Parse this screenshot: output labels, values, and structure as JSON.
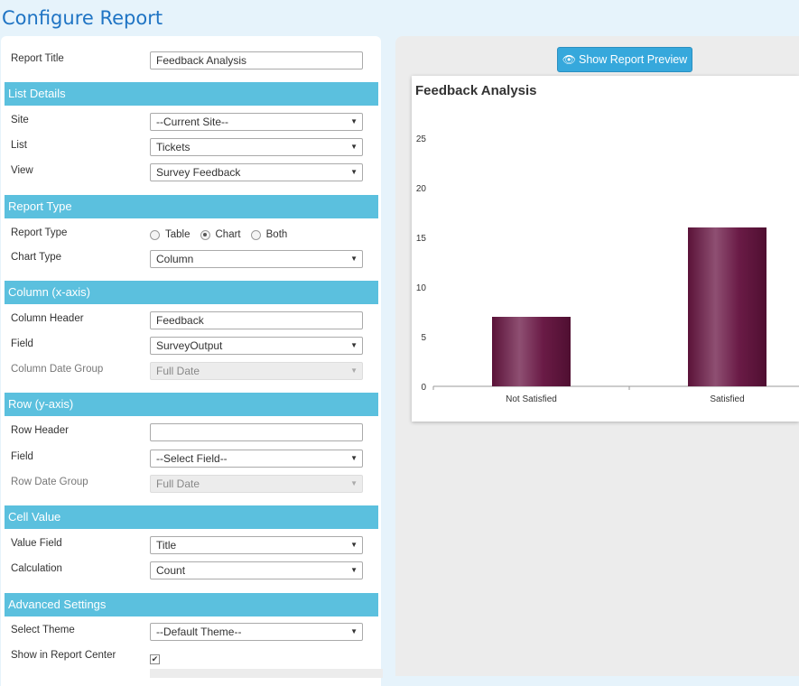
{
  "page": {
    "title": "Configure Report"
  },
  "form": {
    "report_title": {
      "label": "Report Title",
      "value": "Feedback Analysis"
    },
    "list_details": {
      "heading": "List Details",
      "site": {
        "label": "Site",
        "value": "--Current Site--"
      },
      "list": {
        "label": "List",
        "value": "Tickets"
      },
      "view": {
        "label": "View",
        "value": "Survey Feedback"
      }
    },
    "report_type": {
      "heading": "Report Type",
      "type": {
        "label": "Report Type",
        "options": [
          "Table",
          "Chart",
          "Both"
        ],
        "selected": "Chart"
      },
      "chart_type": {
        "label": "Chart Type",
        "value": "Column"
      }
    },
    "column": {
      "heading": "Column (x-axis)",
      "header": {
        "label": "Column Header",
        "value": "Feedback"
      },
      "field": {
        "label": "Field",
        "value": "SurveyOutput"
      },
      "date_group": {
        "label": "Column Date Group",
        "value": "Full Date"
      }
    },
    "row": {
      "heading": "Row (y-axis)",
      "header": {
        "label": "Row Header",
        "value": ""
      },
      "field": {
        "label": "Field",
        "value": "--Select Field--"
      },
      "date_group": {
        "label": "Row Date Group",
        "value": "Full Date"
      }
    },
    "cell_value": {
      "heading": "Cell Value",
      "value_field": {
        "label": "Value Field",
        "value": "Title"
      },
      "calculation": {
        "label": "Calculation",
        "value": "Count"
      }
    },
    "advanced": {
      "heading": "Advanced Settings",
      "theme": {
        "label": "Select Theme",
        "value": "--Default Theme--"
      },
      "show_in_center": {
        "label": "Show in Report Center",
        "checked": true
      }
    }
  },
  "preview": {
    "button_label": "Show Report Preview",
    "icon": "eye-icon"
  },
  "chart_data": {
    "type": "bar",
    "title": "Feedback Analysis",
    "categories": [
      "Not Satisfied",
      "Satisfied"
    ],
    "values": [
      7,
      16
    ],
    "ylim": [
      0,
      25
    ],
    "yticks": [
      0,
      5,
      10,
      15,
      20,
      25
    ],
    "xlabel": "",
    "ylabel": "",
    "bar_color": "#6a1b46",
    "grid": false
  }
}
